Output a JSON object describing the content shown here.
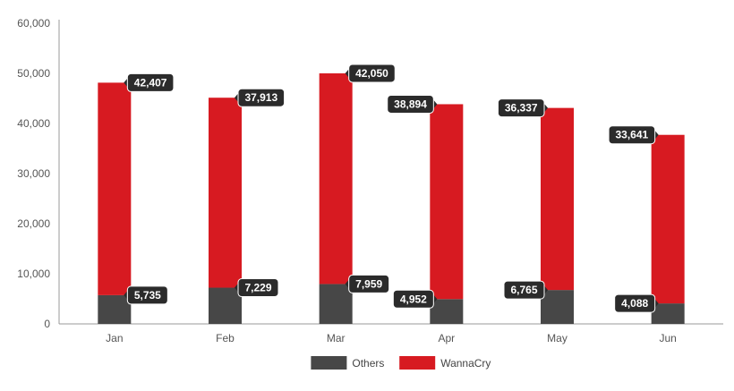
{
  "chart_data": {
    "type": "bar",
    "stacked": true,
    "categories": [
      "Jan",
      "Feb",
      "Mar",
      "Apr",
      "May",
      "Jun"
    ],
    "series": [
      {
        "name": "Others",
        "color": "#474747",
        "values": [
          5735,
          7229,
          7959,
          4952,
          6765,
          4088
        ]
      },
      {
        "name": "WannaCry",
        "color": "#d71a21",
        "values": [
          42407,
          37913,
          42050,
          38894,
          36337,
          33641
        ]
      }
    ],
    "ylim": [
      0,
      60000
    ],
    "yticks": [
      0,
      10000,
      20000,
      30000,
      40000,
      50000,
      60000
    ],
    "legend_position": "bottom-center",
    "grid": false,
    "label_sides": {
      "Others": [
        "right",
        "right",
        "right",
        "left",
        "left",
        "left"
      ],
      "WannaCry": [
        "right",
        "right",
        "right",
        "left",
        "left",
        "left"
      ]
    }
  }
}
